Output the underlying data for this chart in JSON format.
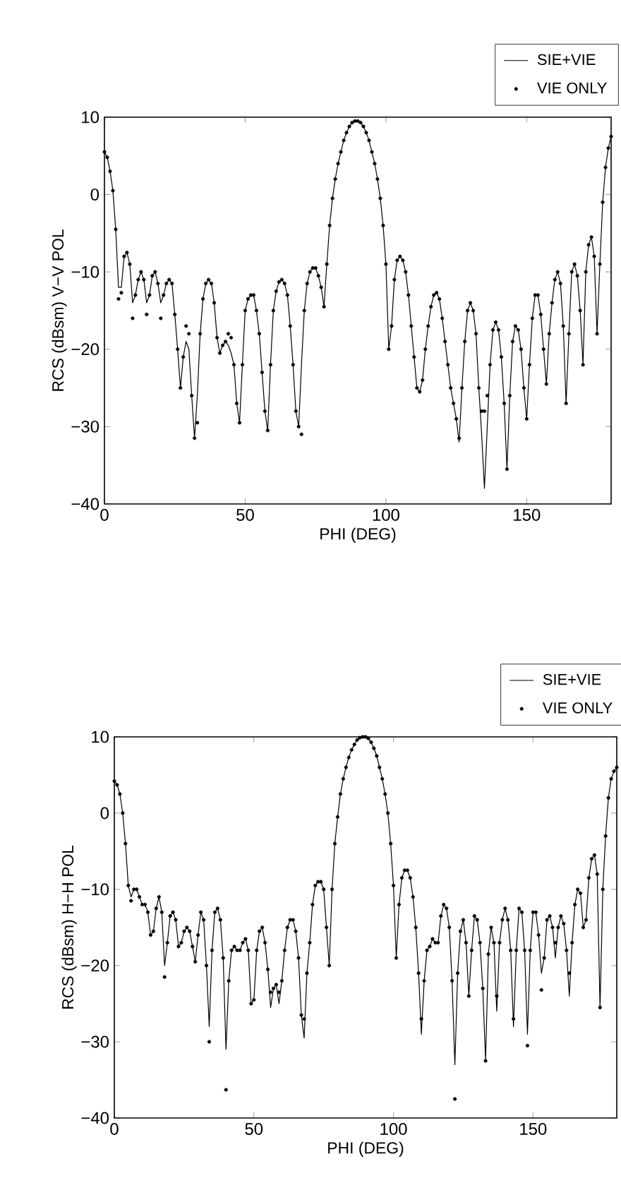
{
  "chart_data": [
    {
      "type": "line",
      "xlabel": "PHI (DEG)",
      "ylabel": "RCS (dBsm) V−V POL",
      "legend": "top right",
      "xlim": [
        0,
        180
      ],
      "ylim": [
        -40,
        10
      ],
      "xticks": [
        0,
        50,
        100,
        150
      ],
      "yticks": [
        {
          "value": -40,
          "label": "−40"
        },
        {
          "value": -30,
          "label": "−30"
        },
        {
          "value": -20,
          "label": "−20"
        },
        {
          "value": -10,
          "label": "−10"
        },
        {
          "value": 0,
          "label": "0"
        },
        {
          "value": 10,
          "label": "10"
        }
      ],
      "x": [
        0,
        1,
        2,
        3,
        4,
        5,
        6,
        7,
        8,
        9,
        10,
        11,
        12,
        13,
        14,
        15,
        16,
        17,
        18,
        19,
        20,
        21,
        22,
        23,
        24,
        25,
        26,
        27,
        28,
        29,
        30,
        31,
        32,
        33,
        34,
        35,
        36,
        37,
        38,
        39,
        40,
        41,
        42,
        43,
        44,
        45,
        46,
        47,
        48,
        49,
        50,
        51,
        52,
        53,
        54,
        55,
        56,
        57,
        58,
        59,
        60,
        61,
        62,
        63,
        64,
        65,
        66,
        67,
        68,
        69,
        70,
        71,
        72,
        73,
        74,
        75,
        76,
        77,
        78,
        79,
        80,
        81,
        82,
        83,
        84,
        85,
        86,
        87,
        88,
        89,
        90,
        91,
        92,
        93,
        94,
        95,
        96,
        97,
        98,
        99,
        100,
        101,
        102,
        103,
        104,
        105,
        106,
        107,
        108,
        109,
        110,
        111,
        112,
        113,
        114,
        115,
        116,
        117,
        118,
        119,
        120,
        121,
        122,
        123,
        124,
        125,
        126,
        127,
        128,
        129,
        130,
        131,
        132,
        133,
        134,
        135,
        136,
        137,
        138,
        139,
        140,
        141,
        142,
        143,
        144,
        145,
        146,
        147,
        148,
        149,
        150,
        151,
        152,
        153,
        154,
        155,
        156,
        157,
        158,
        159,
        160,
        161,
        162,
        163,
        164,
        165,
        166,
        167,
        168,
        169,
        170,
        171,
        172,
        173,
        174,
        175,
        176,
        177,
        178,
        179,
        180
      ],
      "series": [
        {
          "name": "SIE+VIE",
          "color": "#000000",
          "line_style": "solid",
          "values": [
            5.5,
            4.8,
            3,
            0.5,
            -4.5,
            -12,
            -12,
            -8,
            -7.5,
            -9,
            -14,
            -13,
            -11,
            -10,
            -11,
            -14,
            -13,
            -10.5,
            -10,
            -11.5,
            -14,
            -13,
            -11.5,
            -11,
            -11.5,
            -15.5,
            -20,
            -25,
            -21,
            -19,
            -20,
            -26,
            -31.5,
            -26,
            -18,
            -13.5,
            -11.5,
            -11,
            -11.5,
            -14,
            -18.5,
            -20.5,
            -19.5,
            -19,
            -19.5,
            -20.5,
            -22,
            -27,
            -29.5,
            -22,
            -15,
            -13.5,
            -13,
            -13,
            -15,
            -18,
            -23,
            -28,
            -30.5,
            -22,
            -15,
            -12.5,
            -11.3,
            -11,
            -11.5,
            -13,
            -17,
            -22,
            -28,
            -30,
            -22,
            -15,
            -11.5,
            -10,
            -9.5,
            -9.5,
            -10.5,
            -12,
            -14.5,
            -9,
            -4,
            -0.5,
            2,
            4,
            5.5,
            7,
            8,
            8.8,
            9.3,
            9.5,
            9.5,
            9.3,
            8.8,
            8,
            7,
            5.5,
            4,
            2,
            -0.5,
            -4,
            -9,
            -20,
            -17,
            -11,
            -8.5,
            -8,
            -8.5,
            -10,
            -13,
            -17,
            -21,
            -25,
            -25.5,
            -24,
            -20,
            -17,
            -14.5,
            -13,
            -12.7,
            -13.5,
            -16,
            -19,
            -22,
            -25,
            -27,
            -29,
            -32,
            -25,
            -19,
            -15,
            -14,
            -15,
            -18,
            -25,
            -31,
            -38,
            -30,
            -22,
            -17.5,
            -16.5,
            -17.5,
            -21,
            -27,
            -35.5,
            -26,
            -19,
            -17,
            -17.5,
            -20,
            -25,
            -29,
            -22,
            -16,
            -13,
            -13,
            -15.5,
            -20,
            -24.5,
            -18,
            -14,
            -11,
            -10,
            -11.5,
            -17,
            -27,
            -18,
            -10,
            -9,
            -10.5,
            -15,
            -22,
            -10,
            -6.5,
            -5.5,
            -8,
            -18,
            -9,
            -1,
            3.5,
            6,
            7.5
          ]
        },
        {
          "name": "VIE ONLY",
          "type": "scatter",
          "color": "#000000",
          "marker": "circle",
          "values": [
            5.5,
            4.8,
            3,
            0.5,
            -4.5,
            -13.5,
            -12.7,
            -8,
            -7.5,
            -9,
            -16,
            -13,
            -11,
            -10,
            -11,
            -15.5,
            -13,
            -10.5,
            -10,
            -11.5,
            -16,
            -13,
            -11.5,
            -11,
            -11.5,
            -15.5,
            -20,
            -25,
            -21,
            -17,
            -18,
            -26,
            -31.5,
            -29.5,
            -18,
            -13.5,
            -11.5,
            -11,
            -11.5,
            -14,
            -18.5,
            -20.5,
            -19.5,
            -19,
            -18,
            -18.5,
            -22,
            -27,
            -29.5,
            -22,
            -15,
            -13.5,
            -13,
            -13,
            -15,
            -18,
            -23,
            -28,
            -30.5,
            -22,
            -15,
            -12.5,
            -11.3,
            -11,
            -11.5,
            -13,
            -17,
            -22,
            -28,
            -30,
            -31,
            -15,
            -11.5,
            -10,
            -9.5,
            -9.5,
            -10.5,
            -12,
            -14.5,
            -9,
            -4,
            -0.5,
            2,
            4,
            5.5,
            7,
            8,
            8.8,
            9.3,
            9.5,
            9.5,
            9.3,
            8.8,
            8,
            7,
            5.5,
            4,
            2,
            -0.5,
            -4,
            -9,
            -20,
            -17,
            -11,
            -8.5,
            -8,
            -8.5,
            -10,
            -13,
            -17,
            -21,
            -25,
            -25.5,
            -24,
            -20,
            -17,
            -14.5,
            -13,
            -12.7,
            -13.5,
            -16,
            -19,
            -22,
            -25,
            -27,
            -29,
            -31.5,
            -25,
            -19,
            -15,
            -14,
            -15,
            -18,
            -25,
            -28,
            -28,
            -26,
            -22,
            -17.5,
            -16.5,
            -17.5,
            -21,
            -27,
            -35.5,
            -26,
            -19,
            -17,
            -17.5,
            -20,
            -25,
            -29,
            -22,
            -16,
            -13,
            -13,
            -15.5,
            -20,
            -24.5,
            -18,
            -14,
            -11,
            -10,
            -11.5,
            -17,
            -27,
            -18,
            -10,
            -9,
            -10.5,
            -15,
            -22,
            -10,
            -6.5,
            -5.5,
            -8,
            -18,
            -9,
            -1,
            3.5,
            6,
            7.5
          ]
        }
      ]
    },
    {
      "type": "line",
      "xlabel": "PHI (DEG)",
      "ylabel": "RCS (dBsm) H−H POL",
      "legend": "top right",
      "xlim": [
        0,
        180
      ],
      "ylim": [
        -40,
        10
      ],
      "xticks": [
        0,
        50,
        100,
        150
      ],
      "yticks": [
        {
          "value": -40,
          "label": "−40"
        },
        {
          "value": -30,
          "label": "−30"
        },
        {
          "value": -20,
          "label": "−20"
        },
        {
          "value": -10,
          "label": "−10"
        },
        {
          "value": 0,
          "label": "0"
        },
        {
          "value": 10,
          "label": "10"
        }
      ],
      "x": [
        0,
        1,
        2,
        3,
        4,
        5,
        6,
        7,
        8,
        9,
        10,
        11,
        12,
        13,
        14,
        15,
        16,
        17,
        18,
        19,
        20,
        21,
        22,
        23,
        24,
        25,
        26,
        27,
        28,
        29,
        30,
        31,
        32,
        33,
        34,
        35,
        36,
        37,
        38,
        39,
        40,
        41,
        42,
        43,
        44,
        45,
        46,
        47,
        48,
        49,
        50,
        51,
        52,
        53,
        54,
        55,
        56,
        57,
        58,
        59,
        60,
        61,
        62,
        63,
        64,
        65,
        66,
        67,
        68,
        69,
        70,
        71,
        72,
        73,
        74,
        75,
        76,
        77,
        78,
        79,
        80,
        81,
        82,
        83,
        84,
        85,
        86,
        87,
        88,
        89,
        90,
        91,
        92,
        93,
        94,
        95,
        96,
        97,
        98,
        99,
        100,
        101,
        102,
        103,
        104,
        105,
        106,
        107,
        108,
        109,
        110,
        111,
        112,
        113,
        114,
        115,
        116,
        117,
        118,
        119,
        120,
        121,
        122,
        123,
        124,
        125,
        126,
        127,
        128,
        129,
        130,
        131,
        132,
        133,
        134,
        135,
        136,
        137,
        138,
        139,
        140,
        141,
        142,
        143,
        144,
        145,
        146,
        147,
        148,
        149,
        150,
        151,
        152,
        153,
        154,
        155,
        156,
        157,
        158,
        159,
        160,
        161,
        162,
        163,
        164,
        165,
        166,
        167,
        168,
        169,
        170,
        171,
        172,
        173,
        174,
        175,
        176,
        177,
        178,
        179,
        180
      ],
      "series": [
        {
          "name": "SIE+VIE",
          "color": "#000000",
          "line_style": "solid",
          "values": [
            4.2,
            3.7,
            2.5,
            0,
            -4,
            -9.5,
            -11,
            -10,
            -10,
            -11,
            -12,
            -12,
            -13,
            -16,
            -15.5,
            -12.5,
            -11,
            -13,
            -20,
            -17,
            -13.5,
            -13,
            -14,
            -17.5,
            -17,
            -15.5,
            -15,
            -15.5,
            -17.5,
            -19.5,
            -16,
            -13,
            -14,
            -20,
            -28,
            -18,
            -13,
            -12.5,
            -14,
            -19,
            -31,
            -22,
            -18,
            -17.5,
            -18,
            -18,
            -17,
            -16.5,
            -18,
            -25,
            -24.5,
            -18,
            -15.5,
            -15,
            -17,
            -20.5,
            -25.5,
            -23,
            -22.5,
            -25,
            -22,
            -18,
            -15,
            -14,
            -14,
            -15.5,
            -19,
            -26.5,
            -29.5,
            -21,
            -17,
            -12,
            -9.5,
            -9,
            -9,
            -10,
            -15,
            -20,
            -10,
            -4,
            -0.5,
            2.5,
            4.5,
            6,
            7.3,
            8.3,
            9,
            9.6,
            9.9,
            10,
            10,
            9.8,
            9.3,
            8.5,
            7.5,
            6,
            4.5,
            2.5,
            0,
            -4,
            -9.5,
            -19,
            -12,
            -8.5,
            -7.5,
            -7.5,
            -8.5,
            -11,
            -15,
            -21,
            -29,
            -22,
            -18,
            -17.5,
            -16.5,
            -17,
            -17,
            -13.5,
            -12,
            -12.5,
            -15,
            -22,
            -33,
            -21,
            -15.5,
            -14,
            -17,
            -24,
            -18,
            -13.5,
            -14,
            -17,
            -23,
            -32.5,
            -18.5,
            -15,
            -17,
            -26,
            -17,
            -14,
            -12.5,
            -14,
            -18,
            -28,
            -18,
            -12.5,
            -13,
            -18,
            -29,
            -18,
            -13,
            -13,
            -16,
            -21,
            -19,
            -14,
            -13.5,
            -15,
            -19,
            -15,
            -13.5,
            -14.5,
            -18,
            -24,
            -17,
            -12,
            -10,
            -10.5,
            -15,
            -14,
            -8.5,
            -6,
            -5.5,
            -8,
            -25.5,
            -10,
            -3,
            2,
            4.5,
            5.5,
            6
          ]
        },
        {
          "name": "VIE ONLY",
          "type": "scatter",
          "color": "#000000",
          "marker": "circle",
          "values": [
            4.2,
            3.7,
            2.5,
            0,
            -4,
            -9.5,
            -11.5,
            -10,
            -10,
            -11,
            -12,
            -12,
            -13,
            -16,
            -15.5,
            -12.5,
            -11,
            -13,
            -21.5,
            -17,
            -13.5,
            -13,
            -14,
            -17.5,
            -17,
            -15.5,
            -15,
            -15.5,
            -17.5,
            -19.5,
            -16,
            -13,
            -14,
            -20,
            -30,
            -18,
            -13,
            -12.5,
            -14,
            -19,
            -36.3,
            -22,
            -18,
            -17.5,
            -18,
            -18,
            -17,
            -16.5,
            -18,
            -25,
            -24.5,
            -18,
            -15.5,
            -15,
            -17,
            -20.5,
            -23.5,
            -23,
            -22.5,
            -23.5,
            -22,
            -18,
            -15,
            -14,
            -14,
            -15.5,
            -19,
            -26.5,
            -27,
            -21,
            -17,
            -12,
            -9.5,
            -9,
            -9,
            -10,
            -15,
            -20,
            -10,
            -4,
            -0.5,
            2.5,
            4.5,
            6,
            7.3,
            8.3,
            9,
            9.6,
            9.9,
            10,
            10,
            9.8,
            9.3,
            8.5,
            7.5,
            6,
            4.5,
            2.5,
            0,
            -4,
            -9.5,
            -19,
            -12,
            -8.5,
            -7.5,
            -7.5,
            -8.5,
            -11,
            -15,
            -21,
            -27,
            -22,
            -18,
            -17.5,
            -16.5,
            -17,
            -17,
            -13.5,
            -12,
            -12.5,
            -15,
            -22,
            -37.5,
            -21,
            -15.5,
            -14,
            -17,
            -24,
            -18,
            -13.5,
            -14,
            -17,
            -23,
            -32.5,
            -18.5,
            -15,
            -17,
            -24,
            -17,
            -14,
            -12.5,
            -14,
            -18,
            -27,
            -18,
            -12.5,
            -13,
            -18,
            -30.5,
            -18,
            -13,
            -13,
            -16,
            -23.2,
            -19,
            -14,
            -13.5,
            -15,
            -17,
            -15,
            -13.5,
            -14.5,
            -18,
            -21,
            -17,
            -12,
            -10,
            -10.5,
            -15,
            -14,
            -8.5,
            -6,
            -5.5,
            -8,
            -25.5,
            -10,
            -3,
            2,
            4.5,
            5.5,
            6
          ]
        }
      ]
    }
  ]
}
